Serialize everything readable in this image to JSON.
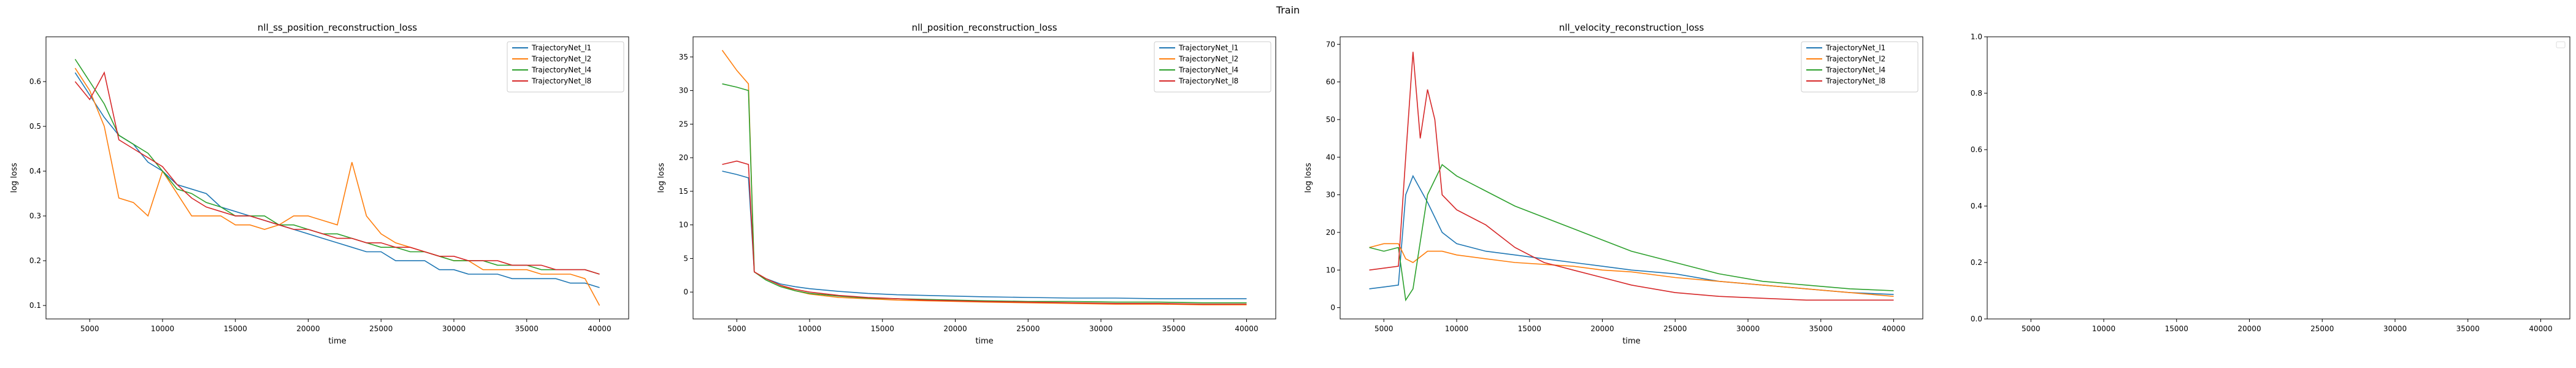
{
  "suptitle": "Train",
  "colors": {
    "l1": "#1f77b4",
    "l2": "#ff7f0e",
    "l4": "#2ca02c",
    "l8": "#d62728"
  },
  "chart_data": [
    {
      "type": "line",
      "title": "nll_ss_position_reconstruction_loss",
      "xlabel": "time",
      "ylabel": "log loss",
      "xlim": [
        2000,
        42000
      ],
      "ylim": [
        0.07,
        0.7
      ],
      "xticks": [
        5000,
        10000,
        15000,
        20000,
        25000,
        30000,
        35000,
        40000
      ],
      "yticks": [
        0.1,
        0.2,
        0.3,
        0.4,
        0.5,
        0.6
      ],
      "legend": "upper right",
      "grid": false,
      "series": [
        {
          "name": "TrajectoryNet_l1",
          "color": "#1f77b4",
          "x": [
            4000,
            5000,
            6000,
            7000,
            8000,
            9000,
            10000,
            11000,
            12000,
            13000,
            14000,
            15000,
            16000,
            17000,
            18000,
            19000,
            20000,
            21000,
            22000,
            23000,
            24000,
            25000,
            26000,
            27000,
            28000,
            29000,
            30000,
            31000,
            32000,
            33000,
            34000,
            35000,
            36000,
            37000,
            38000,
            39000,
            40000
          ],
          "y": [
            0.62,
            0.57,
            0.52,
            0.48,
            0.46,
            0.42,
            0.4,
            0.37,
            0.36,
            0.35,
            0.32,
            0.31,
            0.3,
            0.29,
            0.28,
            0.27,
            0.26,
            0.25,
            0.24,
            0.23,
            0.22,
            0.22,
            0.2,
            0.2,
            0.2,
            0.18,
            0.18,
            0.17,
            0.17,
            0.17,
            0.16,
            0.16,
            0.16,
            0.16,
            0.15,
            0.15,
            0.14
          ]
        },
        {
          "name": "TrajectoryNet_l2",
          "color": "#ff7f0e",
          "x": [
            4000,
            5000,
            6000,
            7000,
            8000,
            9000,
            10000,
            11000,
            12000,
            13000,
            14000,
            15000,
            16000,
            17000,
            18000,
            19000,
            20000,
            21000,
            22000,
            23000,
            24000,
            25000,
            26000,
            27000,
            28000,
            29000,
            30000,
            31000,
            32000,
            33000,
            34000,
            35000,
            36000,
            37000,
            38000,
            39000,
            40000
          ],
          "y": [
            0.63,
            0.58,
            0.5,
            0.34,
            0.33,
            0.3,
            0.4,
            0.35,
            0.3,
            0.3,
            0.3,
            0.28,
            0.28,
            0.27,
            0.28,
            0.3,
            0.3,
            0.29,
            0.28,
            0.42,
            0.3,
            0.26,
            0.24,
            0.23,
            0.22,
            0.21,
            0.2,
            0.2,
            0.18,
            0.18,
            0.18,
            0.18,
            0.17,
            0.17,
            0.17,
            0.16,
            0.1
          ]
        },
        {
          "name": "TrajectoryNet_l4",
          "color": "#2ca02c",
          "x": [
            4000,
            5000,
            6000,
            7000,
            8000,
            9000,
            10000,
            11000,
            12000,
            13000,
            14000,
            15000,
            16000,
            17000,
            18000,
            19000,
            20000,
            21000,
            22000,
            23000,
            24000,
            25000,
            26000,
            27000,
            28000,
            29000,
            30000,
            31000,
            32000,
            33000,
            34000,
            35000,
            36000,
            37000,
            38000,
            39000,
            40000
          ],
          "y": [
            0.65,
            0.6,
            0.55,
            0.48,
            0.46,
            0.44,
            0.4,
            0.36,
            0.35,
            0.33,
            0.32,
            0.3,
            0.3,
            0.3,
            0.28,
            0.28,
            0.27,
            0.26,
            0.26,
            0.25,
            0.24,
            0.23,
            0.23,
            0.22,
            0.22,
            0.21,
            0.2,
            0.2,
            0.2,
            0.19,
            0.19,
            0.19,
            0.18,
            0.18,
            0.18,
            0.18,
            0.17
          ]
        },
        {
          "name": "TrajectoryNet_l8",
          "color": "#d62728",
          "x": [
            4000,
            5000,
            6000,
            7000,
            8000,
            9000,
            10000,
            11000,
            12000,
            13000,
            14000,
            15000,
            16000,
            17000,
            18000,
            19000,
            20000,
            21000,
            22000,
            23000,
            24000,
            25000,
            26000,
            27000,
            28000,
            29000,
            30000,
            31000,
            32000,
            33000,
            34000,
            35000,
            36000,
            37000,
            38000,
            39000,
            40000
          ],
          "y": [
            0.6,
            0.56,
            0.62,
            0.47,
            0.45,
            0.43,
            0.41,
            0.37,
            0.34,
            0.32,
            0.31,
            0.3,
            0.3,
            0.29,
            0.28,
            0.27,
            0.27,
            0.26,
            0.25,
            0.25,
            0.24,
            0.24,
            0.23,
            0.23,
            0.22,
            0.21,
            0.21,
            0.2,
            0.2,
            0.2,
            0.19,
            0.19,
            0.19,
            0.18,
            0.18,
            0.18,
            0.17
          ]
        }
      ]
    },
    {
      "type": "line",
      "title": "nll_position_reconstruction_loss",
      "xlabel": "time",
      "ylabel": "log loss",
      "xlim": [
        2000,
        42000
      ],
      "ylim": [
        -4,
        38
      ],
      "xticks": [
        5000,
        10000,
        15000,
        20000,
        25000,
        30000,
        35000,
        40000
      ],
      "yticks": [
        0,
        5,
        10,
        15,
        20,
        25,
        30,
        35
      ],
      "legend": "upper right",
      "grid": false,
      "series": [
        {
          "name": "TrajectoryNet_l1",
          "color": "#1f77b4",
          "x": [
            4000,
            5000,
            5800,
            6200,
            7000,
            8000,
            9000,
            10000,
            12000,
            14000,
            16000,
            18000,
            20000,
            22000,
            25000,
            28000,
            31000,
            34000,
            37000,
            40000
          ],
          "y": [
            18,
            17.5,
            17,
            3,
            2,
            1.2,
            0.8,
            0.5,
            0.1,
            -0.2,
            -0.4,
            -0.5,
            -0.6,
            -0.7,
            -0.8,
            -0.9,
            -0.9,
            -1.0,
            -1.0,
            -1.0
          ]
        },
        {
          "name": "TrajectoryNet_l2",
          "color": "#ff7f0e",
          "x": [
            4000,
            5000,
            5800,
            6200,
            7000,
            8000,
            9000,
            10000,
            12000,
            14000,
            16000,
            18000,
            20000,
            22000,
            25000,
            28000,
            31000,
            34000,
            37000,
            40000
          ],
          "y": [
            36,
            33,
            31,
            3,
            2,
            1.0,
            0.2,
            -0.3,
            -0.8,
            -1.0,
            -1.2,
            -1.3,
            -1.4,
            -1.5,
            -1.6,
            -1.7,
            -1.8,
            -1.8,
            -1.9,
            -1.9
          ]
        },
        {
          "name": "TrajectoryNet_l4",
          "color": "#2ca02c",
          "x": [
            4000,
            5000,
            5800,
            6200,
            7000,
            8000,
            9000,
            10000,
            12000,
            14000,
            16000,
            18000,
            20000,
            22000,
            25000,
            28000,
            31000,
            34000,
            37000,
            40000
          ],
          "y": [
            31,
            30.5,
            30,
            3,
            1.8,
            0.8,
            0.2,
            -0.2,
            -0.6,
            -0.9,
            -1.0,
            -1.1,
            -1.2,
            -1.3,
            -1.4,
            -1.4,
            -1.5,
            -1.5,
            -1.6,
            -1.6
          ]
        },
        {
          "name": "TrajectoryNet_l8",
          "color": "#d62728",
          "x": [
            4000,
            5000,
            5800,
            6200,
            7000,
            8000,
            9000,
            10000,
            12000,
            14000,
            16000,
            18000,
            20000,
            22000,
            25000,
            28000,
            31000,
            34000,
            37000,
            40000
          ],
          "y": [
            19,
            19.5,
            19,
            3,
            2,
            1.0,
            0.4,
            0,
            -0.5,
            -0.8,
            -1.0,
            -1.2,
            -1.3,
            -1.4,
            -1.5,
            -1.6,
            -1.7,
            -1.7,
            -1.8,
            -1.8
          ]
        }
      ]
    },
    {
      "type": "line",
      "title": "nll_velocity_reconstruction_loss",
      "xlabel": "time",
      "ylabel": "log loss",
      "xlim": [
        2000,
        42000
      ],
      "ylim": [
        -3,
        72
      ],
      "xticks": [
        5000,
        10000,
        15000,
        20000,
        25000,
        30000,
        35000,
        40000
      ],
      "yticks": [
        0,
        10,
        20,
        30,
        40,
        50,
        60,
        70
      ],
      "legend": "upper right",
      "grid": false,
      "series": [
        {
          "name": "TrajectoryNet_l1",
          "color": "#1f77b4",
          "x": [
            4000,
            5000,
            6000,
            6500,
            7000,
            8000,
            9000,
            10000,
            12000,
            14000,
            16000,
            18000,
            20000,
            22000,
            25000,
            28000,
            31000,
            34000,
            37000,
            40000
          ],
          "y": [
            5,
            5.5,
            6,
            30,
            35,
            28,
            20,
            17,
            15,
            14,
            13,
            12,
            11,
            10,
            9,
            7,
            6,
            5,
            4,
            3.5
          ]
        },
        {
          "name": "TrajectoryNet_l2",
          "color": "#ff7f0e",
          "x": [
            4000,
            5000,
            6000,
            6500,
            7000,
            8000,
            9000,
            10000,
            12000,
            14000,
            16000,
            18000,
            20000,
            22000,
            25000,
            28000,
            31000,
            34000,
            37000,
            40000
          ],
          "y": [
            16,
            17,
            17,
            13,
            12,
            15,
            15,
            14,
            13,
            12,
            11.5,
            11,
            10,
            9.5,
            8,
            7,
            6,
            5,
            4,
            3
          ]
        },
        {
          "name": "TrajectoryNet_l4",
          "color": "#2ca02c",
          "x": [
            4000,
            5000,
            6000,
            6500,
            7000,
            8000,
            9000,
            10000,
            12000,
            14000,
            16000,
            18000,
            20000,
            22000,
            25000,
            28000,
            31000,
            34000,
            37000,
            40000
          ],
          "y": [
            16,
            15,
            16,
            2,
            5,
            30,
            38,
            35,
            31,
            27,
            24,
            21,
            18,
            15,
            12,
            9,
            7,
            6,
            5,
            4.5
          ]
        },
        {
          "name": "TrajectoryNet_l8",
          "color": "#d62728",
          "x": [
            4000,
            5000,
            6000,
            6500,
            7000,
            7500,
            8000,
            8500,
            9000,
            10000,
            12000,
            14000,
            16000,
            18000,
            20000,
            22000,
            25000,
            28000,
            31000,
            34000,
            37000,
            40000
          ],
          "y": [
            10,
            10.5,
            11,
            40,
            68,
            45,
            58,
            50,
            30,
            26,
            22,
            16,
            12,
            10,
            8,
            6,
            4,
            3,
            2.5,
            2,
            2,
            2
          ]
        }
      ]
    },
    {
      "type": "line",
      "title": "",
      "xlabel": "",
      "ylabel": "",
      "xlim": [
        2000,
        42000
      ],
      "ylim": [
        0,
        1
      ],
      "xticks": [
        5000,
        10000,
        15000,
        20000,
        25000,
        30000,
        35000,
        40000
      ],
      "yticks": [
        0.0,
        0.2,
        0.4,
        0.6,
        0.8,
        1.0
      ],
      "legend": "upper right",
      "grid": false,
      "series": []
    }
  ]
}
